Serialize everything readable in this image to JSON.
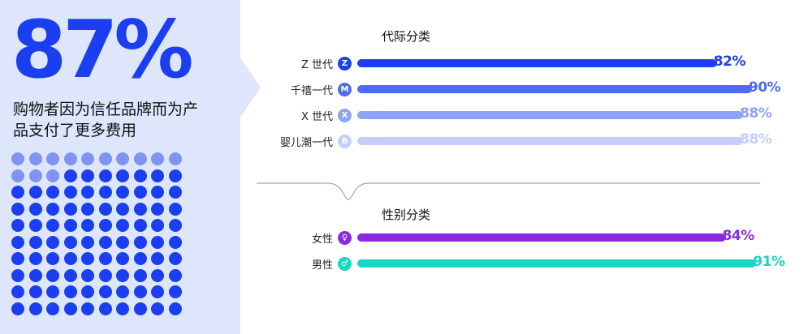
{
  "headline": {
    "percent": "87%",
    "text": "购物者因为信任品牌而为产品支付了更多费用"
  },
  "colors": {
    "panel_bg": "#dde6fb",
    "accent": "#1a3ef0",
    "dot_light": "#7f93f3",
    "dot_dark": "#1a3ef0"
  },
  "dot_grid": {
    "rows": 10,
    "cols": 10,
    "filled": 87
  },
  "chart_data": [
    {
      "type": "bar",
      "title": "代际分类",
      "categories": [
        "Z 世代",
        "千禧一代",
        "X 世代",
        "婴儿潮一代"
      ],
      "badges": [
        "Z",
        "M",
        "X",
        "B"
      ],
      "values": [
        82,
        90,
        88,
        88
      ],
      "value_labels": [
        "82%",
        "90%",
        "88%",
        "88%"
      ],
      "colors": [
        "#1a3ef0",
        "#4d6cf2",
        "#8fa3f4",
        "#c4cff8"
      ],
      "xlim": [
        0,
        100
      ],
      "grid": false,
      "legend": "none"
    },
    {
      "type": "bar",
      "title": "性别分类",
      "categories": [
        "女性",
        "男性"
      ],
      "badges": [
        "♀",
        "♂"
      ],
      "values": [
        84,
        91
      ],
      "value_labels": [
        "84%",
        "91%"
      ],
      "colors": [
        "#8a2be2",
        "#17d6c3"
      ],
      "xlim": [
        0,
        100
      ],
      "grid": false,
      "legend": "none"
    }
  ]
}
